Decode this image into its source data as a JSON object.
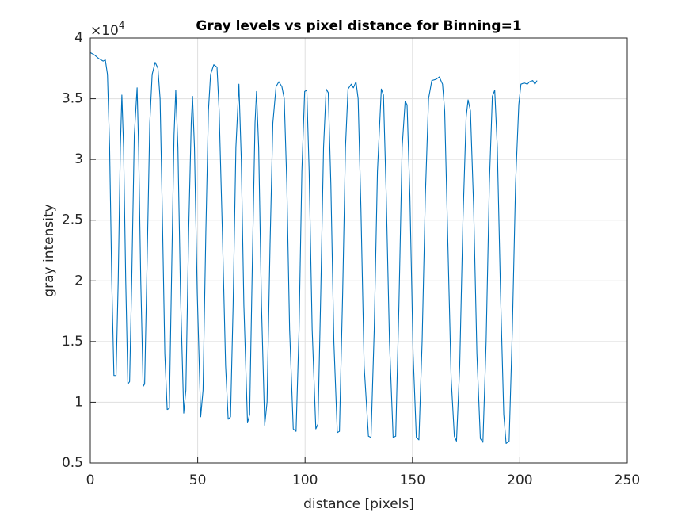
{
  "chart_data": {
    "type": "line",
    "title": "Gray levels vs pixel distance for Binning=1",
    "x_label": "distance [pixels]",
    "y_label": "gray intensity",
    "y_exponent": {
      "base": "×10",
      "power": "4"
    },
    "color": "#0072bd",
    "grid": true,
    "xlim": [
      0,
      250
    ],
    "xticks": [
      0,
      50,
      100,
      150,
      200,
      250
    ],
    "ylim": [
      0.5,
      4
    ],
    "yticks": [
      0.5,
      1,
      1.5,
      2,
      2.5,
      3,
      3.5,
      4
    ],
    "x": [
      0,
      2,
      4,
      6,
      7,
      8,
      9,
      10,
      11,
      12,
      13,
      14,
      14.7,
      15.5,
      16.5,
      17.5,
      18.3,
      19.3,
      20.5,
      21.8,
      22.5,
      23.5,
      24.6,
      25.3,
      26.5,
      27.7,
      28.8,
      30.2,
      31.5,
      32.5,
      33.5,
      34.7,
      35.8,
      36.8,
      38,
      39,
      39.8,
      40.8,
      42,
      43.5,
      44.5,
      45.8,
      47,
      47.6,
      48.5,
      49.8,
      51.4,
      52.5,
      53.8,
      55,
      56,
      57.5,
      59,
      60,
      61.5,
      63,
      64.2,
      65.3,
      66.5,
      67.8,
      69.2,
      70.3,
      71.5,
      73.2,
      74.2,
      75.5,
      76.7,
      77.4,
      78.4,
      79.7,
      81.2,
      82.3,
      83.7,
      85,
      86.5,
      87.8,
      89.2,
      90.3,
      91.5,
      92.8,
      94.5,
      95.8,
      97.2,
      98.5,
      99.8,
      100.8,
      101.9,
      103.3,
      105,
      106,
      107.3,
      108.6,
      109.8,
      110.8,
      112,
      113.4,
      115,
      116,
      117.5,
      118.8,
      120,
      121.5,
      122.5,
      123.7,
      124.7,
      126,
      127.5,
      129.5,
      130.7,
      132.2,
      133.7,
      135.5,
      136.5,
      137.8,
      139.3,
      141,
      142.2,
      143.7,
      145.2,
      146.6,
      147.5,
      148.8,
      150.3,
      151.8,
      153,
      154.5,
      156,
      157.5,
      159,
      161,
      162.5,
      164,
      165,
      166.5,
      168,
      169.5,
      170.5,
      172,
      173.5,
      175,
      175.9,
      177,
      178.5,
      180,
      181.6,
      182.8,
      184.3,
      185.8,
      187.2,
      188.3,
      189.5,
      191,
      192.5,
      193.6,
      195,
      196.5,
      198,
      199.5,
      200.5,
      202,
      203.5,
      204.5,
      206,
      207,
      208
    ],
    "values": [
      3.88,
      3.86,
      3.83,
      3.81,
      3.82,
      3.7,
      3.1,
      2.0,
      1.22,
      1.22,
      2.0,
      3.1,
      3.53,
      3.1,
      2.0,
      1.15,
      1.17,
      2.0,
      3.2,
      3.59,
      3.1,
      2.0,
      1.13,
      1.15,
      2.2,
      3.3,
      3.7,
      3.8,
      3.75,
      3.5,
      2.6,
      1.4,
      0.94,
      0.95,
      2.2,
      3.2,
      3.57,
      3.1,
      1.9,
      0.91,
      1.1,
      2.4,
      3.3,
      3.52,
      3.1,
      1.9,
      0.88,
      1.1,
      2.4,
      3.4,
      3.7,
      3.78,
      3.76,
      3.4,
      2.4,
      1.3,
      0.86,
      0.88,
      1.8,
      3.1,
      3.62,
      3.0,
      1.8,
      0.83,
      0.9,
      2.2,
      3.3,
      3.56,
      3.1,
      1.8,
      0.81,
      1.0,
      2.3,
      3.3,
      3.6,
      3.64,
      3.6,
      3.5,
      2.8,
      1.6,
      0.78,
      0.76,
      1.6,
      2.9,
      3.56,
      3.57,
      2.9,
      1.6,
      0.78,
      0.82,
      1.9,
      3.1,
      3.58,
      3.55,
      2.8,
      1.5,
      0.75,
      0.76,
      1.9,
      3.1,
      3.58,
      3.62,
      3.59,
      3.64,
      3.5,
      2.6,
      1.3,
      0.72,
      0.71,
      1.6,
      2.9,
      3.58,
      3.53,
      2.7,
      1.5,
      0.71,
      0.72,
      1.8,
      3.1,
      3.48,
      3.45,
      2.7,
      1.4,
      0.71,
      0.69,
      1.5,
      2.7,
      3.5,
      3.65,
      3.66,
      3.68,
      3.62,
      3.4,
      2.3,
      1.2,
      0.72,
      0.68,
      1.3,
      2.5,
      3.35,
      3.49,
      3.4,
      2.6,
      1.4,
      0.7,
      0.67,
      1.5,
      2.8,
      3.52,
      3.57,
      3.1,
      1.9,
      0.9,
      0.66,
      0.68,
      1.6,
      2.8,
      3.45,
      3.62,
      3.63,
      3.62,
      3.64,
      3.65,
      3.62,
      3.65
    ]
  }
}
